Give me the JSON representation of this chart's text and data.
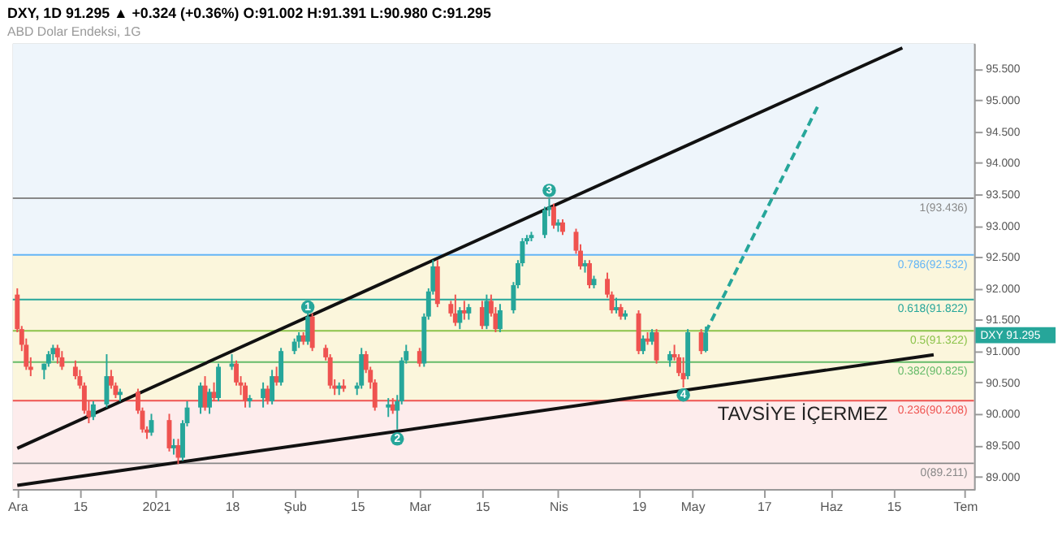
{
  "chart_data": {
    "type": "candlestick",
    "title": "DXY, 1D 91.295 ▲ +0.324 (+0.36%) O:91.002 H:91.391 L:90.980 C:91.295",
    "subtitle": "ABD Dolar Endeksi, 1G",
    "x": [
      "2020-12-01",
      "2020-12-02",
      "2020-12-03",
      "2020-12-04",
      "2020-12-07",
      "2020-12-08",
      "2020-12-09",
      "2020-12-10",
      "2020-12-11",
      "2020-12-14",
      "2020-12-15",
      "2020-12-16",
      "2020-12-17",
      "2020-12-18",
      "2020-12-21",
      "2020-12-22",
      "2020-12-23",
      "2020-12-24",
      "2020-12-28",
      "2020-12-29",
      "2020-12-30",
      "2020-12-31",
      "2021-01-04",
      "2021-01-05",
      "2021-01-06",
      "2021-01-07",
      "2021-01-08",
      "2021-01-11",
      "2021-01-12",
      "2021-01-13",
      "2021-01-14",
      "2021-01-15",
      "2021-01-18",
      "2021-01-19",
      "2021-01-20",
      "2021-01-21",
      "2021-01-22",
      "2021-01-25",
      "2021-01-26",
      "2021-01-27",
      "2021-01-28",
      "2021-01-29",
      "2021-02-01",
      "2021-02-02",
      "2021-02-03",
      "2021-02-04",
      "2021-02-05",
      "2021-02-08",
      "2021-02-09",
      "2021-02-10",
      "2021-02-11",
      "2021-02-12",
      "2021-02-15",
      "2021-02-16",
      "2021-02-17",
      "2021-02-18",
      "2021-02-19",
      "2021-02-22",
      "2021-02-23",
      "2021-02-24",
      "2021-02-25",
      "2021-02-26",
      "2021-03-01",
      "2021-03-02",
      "2021-03-03",
      "2021-03-04",
      "2021-03-05",
      "2021-03-08",
      "2021-03-09",
      "2021-03-10",
      "2021-03-11",
      "2021-03-12",
      "2021-03-15",
      "2021-03-16",
      "2021-03-17",
      "2021-03-18",
      "2021-03-19",
      "2021-03-22",
      "2021-03-23",
      "2021-03-24",
      "2021-03-25",
      "2021-03-26",
      "2021-03-29",
      "2021-03-30",
      "2021-03-31",
      "2021-04-01",
      "2021-04-02",
      "2021-04-05",
      "2021-04-06",
      "2021-04-07",
      "2021-04-08",
      "2021-04-09",
      "2021-04-12",
      "2021-04-13",
      "2021-04-14",
      "2021-04-15",
      "2021-04-16",
      "2021-04-19",
      "2021-04-20",
      "2021-04-21",
      "2021-04-22",
      "2021-04-23",
      "2021-04-26",
      "2021-04-27",
      "2021-04-28",
      "2021-04-29",
      "2021-04-30",
      "2021-05-03",
      "2021-05-04"
    ],
    "ohlc": [
      [
        91.9,
        92.0,
        91.3,
        91.35
      ],
      [
        91.35,
        91.4,
        91.0,
        91.1
      ],
      [
        91.1,
        91.2,
        90.7,
        90.75
      ],
      [
        90.75,
        90.9,
        90.6,
        90.7
      ],
      [
        90.7,
        90.8,
        90.55,
        90.8
      ],
      [
        90.8,
        91.0,
        90.75,
        90.95
      ],
      [
        90.95,
        91.1,
        90.85,
        91.05
      ],
      [
        91.05,
        91.1,
        90.8,
        90.9
      ],
      [
        90.9,
        91.0,
        90.7,
        90.75
      ],
      [
        90.75,
        90.85,
        90.55,
        90.6
      ],
      [
        90.6,
        90.7,
        90.4,
        90.45
      ],
      [
        90.45,
        90.5,
        90.0,
        90.05
      ],
      [
        90.05,
        90.2,
        89.85,
        89.95
      ],
      [
        89.95,
        90.2,
        89.9,
        90.15
      ],
      [
        90.15,
        90.95,
        90.1,
        90.6
      ],
      [
        90.6,
        90.7,
        90.4,
        90.45
      ],
      [
        90.45,
        90.5,
        90.25,
        90.3
      ],
      [
        90.3,
        90.4,
        90.2,
        90.35
      ],
      [
        90.35,
        90.4,
        90.0,
        90.05
      ],
      [
        90.05,
        90.1,
        89.7,
        89.75
      ],
      [
        89.75,
        89.8,
        89.6,
        89.7
      ],
      [
        89.7,
        90.0,
        89.65,
        89.9
      ],
      [
        89.9,
        90.0,
        89.4,
        89.45
      ],
      [
        89.45,
        89.6,
        89.35,
        89.5
      ],
      [
        89.5,
        89.6,
        89.2,
        89.3
      ],
      [
        89.3,
        89.9,
        89.25,
        89.85
      ],
      [
        89.85,
        90.2,
        89.8,
        90.1
      ],
      [
        90.1,
        90.5,
        90.0,
        90.45
      ],
      [
        90.45,
        90.6,
        90.05,
        90.1
      ],
      [
        90.1,
        90.4,
        90.0,
        90.35
      ],
      [
        90.35,
        90.5,
        90.2,
        90.25
      ],
      [
        90.25,
        90.8,
        90.2,
        90.75
      ],
      [
        90.75,
        90.95,
        90.7,
        90.8
      ],
      [
        90.8,
        90.85,
        90.45,
        90.5
      ],
      [
        90.5,
        90.6,
        90.3,
        90.45
      ],
      [
        90.45,
        90.5,
        90.1,
        90.2
      ],
      [
        90.2,
        90.3,
        90.1,
        90.25
      ],
      [
        90.25,
        90.5,
        90.1,
        90.4
      ],
      [
        90.4,
        90.45,
        90.15,
        90.2
      ],
      [
        90.2,
        90.7,
        90.15,
        90.6
      ],
      [
        90.6,
        90.75,
        90.45,
        90.5
      ],
      [
        90.5,
        91.05,
        90.45,
        91.0
      ],
      [
        91.0,
        91.2,
        90.95,
        91.15
      ],
      [
        91.15,
        91.3,
        91.05,
        91.25
      ],
      [
        91.25,
        91.3,
        91.1,
        91.15
      ],
      [
        91.15,
        91.65,
        91.1,
        91.55
      ],
      [
        91.55,
        91.6,
        91.0,
        91.05
      ],
      [
        91.05,
        91.1,
        90.85,
        90.9
      ],
      [
        90.9,
        90.95,
        90.4,
        90.45
      ],
      [
        90.45,
        90.55,
        90.3,
        90.4
      ],
      [
        90.4,
        90.5,
        90.3,
        90.45
      ],
      [
        90.45,
        90.55,
        90.35,
        90.4
      ],
      [
        90.4,
        90.5,
        90.3,
        90.45
      ],
      [
        90.45,
        91.05,
        90.4,
        90.95
      ],
      [
        90.95,
        91.0,
        90.65,
        90.7
      ],
      [
        90.7,
        90.75,
        90.4,
        90.5
      ],
      [
        90.5,
        90.55,
        90.05,
        90.1
      ],
      [
        90.1,
        90.25,
        89.95,
        90.15
      ],
      [
        90.15,
        90.25,
        90.0,
        90.05
      ],
      [
        90.05,
        90.3,
        89.75,
        90.2
      ],
      [
        90.2,
        90.9,
        90.15,
        90.85
      ],
      [
        90.85,
        91.1,
        90.8,
        91.0
      ],
      [
        91.0,
        91.05,
        90.75,
        90.8
      ],
      [
        90.8,
        91.6,
        90.75,
        91.55
      ],
      [
        91.55,
        92.0,
        91.5,
        91.95
      ],
      [
        91.95,
        92.45,
        91.9,
        92.35
      ],
      [
        92.35,
        92.45,
        91.7,
        91.75
      ],
      [
        91.75,
        91.8,
        91.55,
        91.6
      ],
      [
        91.6,
        91.9,
        91.4,
        91.45
      ],
      [
        91.45,
        91.7,
        91.35,
        91.65
      ],
      [
        91.65,
        91.8,
        91.5,
        91.6
      ],
      [
        91.6,
        91.75,
        91.5,
        91.7
      ],
      [
        91.7,
        91.8,
        91.35,
        91.4
      ],
      [
        91.4,
        91.9,
        91.35,
        91.8
      ],
      [
        91.8,
        91.9,
        91.55,
        91.6
      ],
      [
        91.6,
        91.7,
        91.3,
        91.35
      ],
      [
        91.35,
        91.75,
        91.3,
        91.65
      ],
      [
        91.65,
        92.1,
        91.6,
        92.05
      ],
      [
        92.05,
        92.45,
        92.0,
        92.4
      ],
      [
        92.4,
        92.8,
        92.35,
        92.75
      ],
      [
        92.75,
        92.85,
        92.7,
        92.8
      ],
      [
        92.8,
        92.9,
        92.75,
        92.85
      ],
      [
        92.85,
        93.3,
        92.8,
        93.25
      ],
      [
        93.25,
        93.44,
        93.15,
        93.3
      ],
      [
        93.3,
        93.35,
        92.95,
        93.0
      ],
      [
        93.0,
        93.1,
        92.9,
        93.05
      ],
      [
        93.05,
        93.1,
        92.85,
        92.9
      ],
      [
        92.9,
        92.95,
        92.55,
        92.6
      ],
      [
        92.6,
        92.7,
        92.3,
        92.35
      ],
      [
        92.35,
        92.45,
        92.25,
        92.4
      ],
      [
        92.4,
        92.45,
        92.0,
        92.05
      ],
      [
        92.05,
        92.2,
        92.0,
        92.15
      ],
      [
        92.15,
        92.25,
        91.85,
        91.9
      ],
      [
        91.9,
        91.95,
        91.6,
        91.65
      ],
      [
        91.65,
        91.85,
        91.6,
        91.7
      ],
      [
        91.7,
        91.75,
        91.5,
        91.55
      ],
      [
        91.55,
        91.65,
        91.5,
        91.6
      ],
      [
        91.6,
        91.65,
        90.95,
        91.0
      ],
      [
        91.0,
        91.25,
        90.95,
        91.2
      ],
      [
        91.2,
        91.3,
        91.1,
        91.15
      ],
      [
        91.15,
        91.35,
        91.1,
        91.3
      ],
      [
        91.3,
        91.35,
        90.8,
        90.85
      ],
      [
        90.85,
        91.0,
        90.75,
        90.95
      ],
      [
        90.95,
        91.1,
        90.85,
        90.9
      ],
      [
        90.9,
        90.95,
        90.6,
        90.65
      ],
      [
        90.65,
        90.9,
        90.42,
        90.55
      ],
      [
        90.6,
        91.35,
        90.55,
        91.3
      ],
      [
        91.3,
        91.35,
        90.95,
        91.0
      ],
      [
        91.002,
        91.391,
        90.98,
        91.295
      ]
    ],
    "colors": [
      "#ef5350",
      "#ef5350",
      "#ef5350",
      "#ef5350",
      "#26a69a",
      "#26a69a",
      "#26a69a",
      "#ef5350",
      "#ef5350",
      "#ef5350",
      "#ef5350",
      "#ef5350",
      "#ef5350",
      "#26a69a",
      "#26a69a",
      "#ef5350",
      "#ef5350",
      "#26a69a",
      "#ef5350",
      "#ef5350",
      "#ef5350",
      "#26a69a",
      "#ef5350",
      "#26a69a",
      "#ef5350",
      "#26a69a",
      "#26a69a",
      "#26a69a",
      "#ef5350",
      "#26a69a",
      "#ef5350",
      "#26a69a",
      "#26a69a",
      "#ef5350",
      "#ef5350",
      "#ef5350",
      "#26a69a",
      "#26a69a",
      "#ef5350",
      "#26a69a",
      "#ef5350",
      "#26a69a",
      "#26a69a",
      "#26a69a",
      "#ef5350",
      "#26a69a",
      "#ef5350",
      "#ef5350",
      "#ef5350",
      "#ef5350",
      "#26a69a",
      "#ef5350",
      "#26a69a",
      "#26a69a",
      "#ef5350",
      "#ef5350",
      "#ef5350",
      "#26a69a",
      "#ef5350",
      "#26a69a",
      "#26a69a",
      "#26a69a",
      "#ef5350",
      "#26a69a",
      "#26a69a",
      "#26a69a",
      "#ef5350",
      "#ef5350",
      "#ef5350",
      "#26a69a",
      "#ef5350",
      "#26a69a",
      "#ef5350",
      "#26a69a",
      "#ef5350",
      "#ef5350",
      "#26a69a",
      "#26a69a",
      "#26a69a",
      "#26a69a",
      "#26a69a",
      "#26a69a",
      "#26a69a",
      "#26a69a",
      "#ef5350",
      "#26a69a",
      "#ef5350",
      "#ef5350",
      "#ef5350",
      "#26a69a",
      "#ef5350",
      "#26a69a",
      "#ef5350",
      "#ef5350",
      "#26a69a",
      "#ef5350",
      "#26a69a",
      "#ef5350",
      "#26a69a",
      "#ef5350",
      "#26a69a",
      "#ef5350",
      "#26a69a",
      "#ef5350",
      "#ef5350",
      "#ef5350",
      "#26a69a",
      "#ef5350",
      "#26a69a"
    ],
    "series": [
      {
        "type": "line",
        "x": [
          "2020-12-01",
          "2021-06-17"
        ],
        "values": [
          89.45,
          95.83
        ],
        "color": "#111111",
        "line_style": "solid"
      },
      {
        "type": "line",
        "x": [
          "2020-12-01",
          "2021-06-24"
        ],
        "values": [
          88.86,
          90.94
        ],
        "color": "#111111",
        "line_style": "solid"
      },
      {
        "type": "line",
        "x": [
          "2021-05-04",
          "2021-05-29"
        ],
        "values": [
          91.3,
          94.89
        ],
        "color": "#26a69a",
        "line_style": "dashed"
      }
    ],
    "xlim": [
      "2020-11-30",
      "2021-07-03"
    ],
    "xticks": [
      {
        "value": "2020-12-01",
        "label": "Ara"
      },
      {
        "value": "2020-12-15",
        "label": "15"
      },
      {
        "value": "2021-01-01",
        "label": "2021"
      },
      {
        "value": "2021-01-18",
        "label": "18"
      },
      {
        "value": "2021-02-01",
        "label": "Şub"
      },
      {
        "value": "2021-02-15",
        "label": "15"
      },
      {
        "value": "2021-03-01",
        "label": "Mar"
      },
      {
        "value": "2021-03-15",
        "label": "15"
      },
      {
        "value": "2021-04-01",
        "label": "Nis"
      },
      {
        "value": "2021-04-19",
        "label": "19"
      },
      {
        "value": "2021-05-01",
        "label": "May"
      },
      {
        "value": "2021-05-17",
        "label": "17"
      },
      {
        "value": "2021-06-01",
        "label": "Haz"
      },
      {
        "value": "2021-06-15",
        "label": "15"
      },
      {
        "value": "2021-07-01",
        "label": "Tem"
      }
    ],
    "ylim": [
      88.8,
      95.9
    ],
    "yticks": [
      {
        "value": 89,
        "label": "89.000"
      },
      {
        "value": 89.5,
        "label": "89.500"
      },
      {
        "value": 90,
        "label": "90.000"
      },
      {
        "value": 90.5,
        "label": "90.500"
      },
      {
        "value": 91,
        "label": "91.000"
      },
      {
        "value": 91.5,
        "label": "91.500"
      },
      {
        "value": 92,
        "label": "92.000"
      },
      {
        "value": 92.5,
        "label": "92.500"
      },
      {
        "value": 93,
        "label": "93.000"
      },
      {
        "value": 93.5,
        "label": "93.500"
      },
      {
        "value": 94,
        "label": "94.000"
      },
      {
        "value": 94.5,
        "label": "94.500"
      },
      {
        "value": 95,
        "label": "95.000"
      },
      {
        "value": 95.5,
        "label": "95.500"
      }
    ],
    "ref_lines": [
      {
        "axis": "y",
        "value": 93.436,
        "label": "1(93.436)",
        "color": "#888888"
      },
      {
        "axis": "y",
        "value": 92.532,
        "label": "0.786(92.532)",
        "color": "#64b5f6"
      },
      {
        "axis": "y",
        "value": 91.822,
        "label": "0.618(91.822)",
        "color": "#26a69a"
      },
      {
        "axis": "y",
        "value": 91.322,
        "label": "0.5(91.322)",
        "color": "#8bc34a"
      },
      {
        "axis": "y",
        "value": 90.825,
        "label": "0.382(90.825)",
        "color": "#66bb6a"
      },
      {
        "axis": "y",
        "value": 90.208,
        "label": "0.236(90.208)",
        "color": "#ef5350"
      },
      {
        "axis": "y",
        "value": 89.211,
        "label": "0(89.211)",
        "color": "#888888"
      }
    ],
    "bands": [
      {
        "axis": "y",
        "from": 88.8,
        "to": 90.208,
        "color": "#fdecec"
      },
      {
        "axis": "y",
        "from": 90.208,
        "to": 92.532,
        "color": "#fbf6dc"
      },
      {
        "axis": "y",
        "from": 92.532,
        "to": 95.9,
        "color": "#eef5fb"
      }
    ],
    "annotations": [
      {
        "text": "1",
        "x": "2021-02-04",
        "y": 91.7
      },
      {
        "text": "2",
        "x": "2021-02-24",
        "y": 89.6
      },
      {
        "text": "3",
        "x": "2021-03-30",
        "y": 93.56
      },
      {
        "text": "4",
        "x": "2021-04-29",
        "y": 90.3
      },
      "TAVSİYE İÇERMEZ",
      "DXY 91.295"
    ]
  }
}
